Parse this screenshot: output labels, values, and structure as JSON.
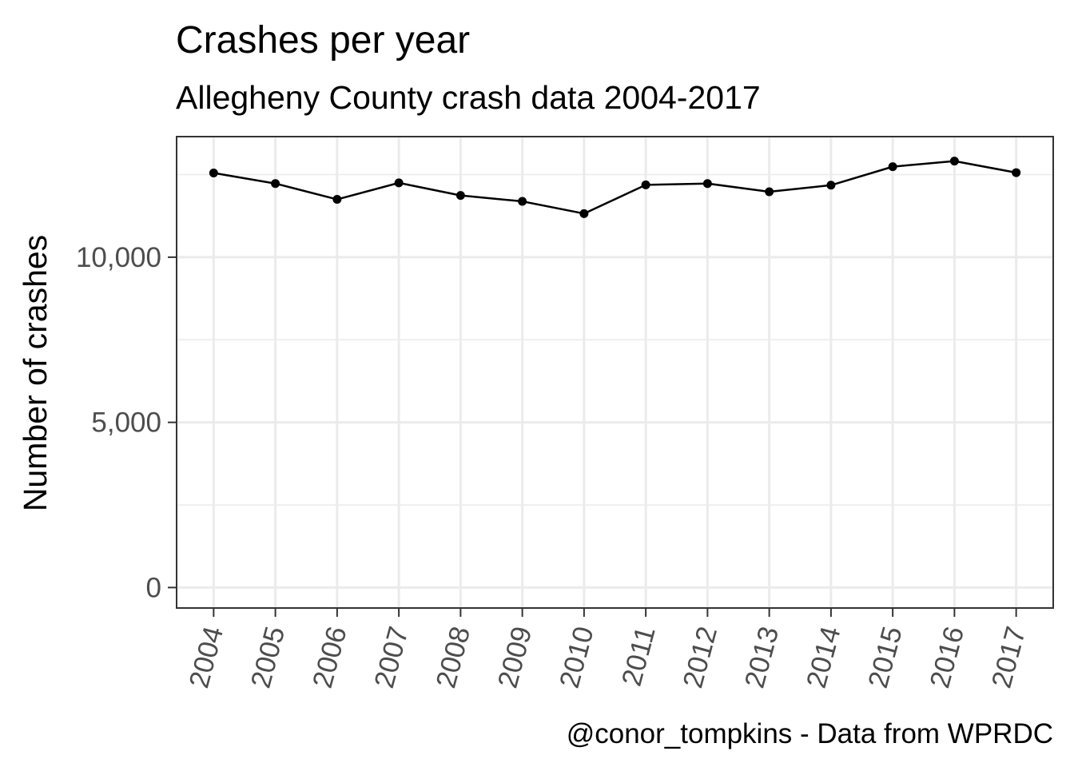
{
  "chart_data": {
    "type": "line",
    "title": "Crashes per year",
    "subtitle": "Allegheny County crash data 2004-2017",
    "xlabel": "",
    "ylabel": "Number of crashes",
    "caption": "@conor_tompkins - Data from WPRDC",
    "categories": [
      "2004",
      "2005",
      "2006",
      "2007",
      "2008",
      "2009",
      "2010",
      "2011",
      "2012",
      "2013",
      "2014",
      "2015",
      "2016",
      "2017"
    ],
    "series": [
      {
        "values": [
          12550,
          12230,
          11750,
          12250,
          11870,
          11690,
          11320,
          12190,
          12230,
          11980,
          12180,
          12740,
          12910,
          12560
        ]
      }
    ],
    "ylim": [
      -620,
      13650
    ],
    "yticks": [
      0,
      5000,
      10000
    ],
    "ytick_labels": [
      "0",
      "5,000",
      "10,000"
    ],
    "yminor": [
      2500,
      7500,
      12500
    ],
    "grid": true,
    "theme": "bw",
    "colors": {
      "line": "#000000",
      "point": "#000000",
      "grid": "#ebebeb",
      "panel_border": "#333333",
      "tick_label": "#4d4d4d"
    }
  }
}
